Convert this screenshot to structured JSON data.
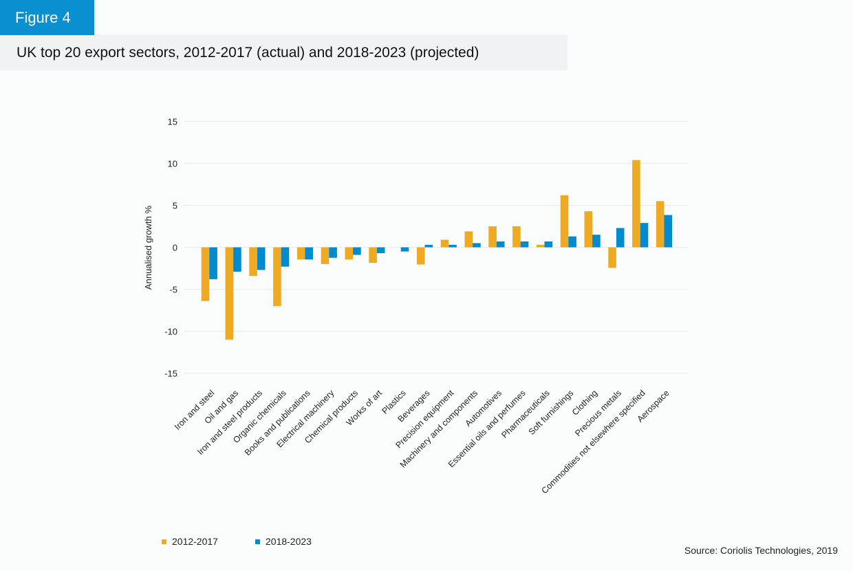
{
  "header": {
    "figure_label": "Figure 4",
    "title": "UK top 20 export sectors, 2012-2017 (actual) and 2018-2023 (projected)"
  },
  "colors": {
    "header_blue": "#0a8fd1",
    "series_2012_2017": "#eeaa22",
    "series_2018_2023": "#008bcf",
    "gridline": "#ebeced"
  },
  "source": "Source: Coriolis Technologies, 2019",
  "chart_data": {
    "type": "bar",
    "title": "UK top 20 export sectors, 2012-2017 (actual) and 2018-2023 (projected)",
    "xlabel": "",
    "ylabel": "Annualised growth %",
    "ylim": [
      -15,
      15
    ],
    "yticks": [
      15,
      10,
      5,
      0,
      -5,
      -10,
      -15
    ],
    "grid": true,
    "legend_position": "bottom-left",
    "categories": [
      "Iron and steel",
      "Oil and gas",
      "Iron and steel products",
      "Organic chemicals",
      "Books and publications",
      "Electrical machinery",
      "Chemical products",
      "Works of art",
      "Plastics",
      "Beverages",
      "Precision equipment",
      "Machinery and components",
      "Automotives",
      "Essential oils and perfumes",
      "Pharmaceuticals",
      "Soft furnishings",
      "Clothing",
      "Precious metals",
      "Commodities not elsewhere specified",
      "Aerospace"
    ],
    "series": [
      {
        "name": "2012-2017",
        "values": [
          -6.4,
          -11.0,
          -3.4,
          -7.0,
          -1.45,
          -2.0,
          -1.45,
          -1.85,
          0.0,
          -2.05,
          0.9,
          1.9,
          2.5,
          2.5,
          0.3,
          6.2,
          4.3,
          -2.45,
          10.4,
          5.5
        ]
      },
      {
        "name": "2018-2023",
        "values": [
          -3.8,
          -2.9,
          -2.7,
          -2.3,
          -1.45,
          -1.25,
          -0.9,
          -0.7,
          -0.5,
          0.3,
          0.3,
          0.5,
          0.7,
          0.7,
          0.7,
          1.3,
          1.5,
          2.3,
          2.9,
          3.85
        ]
      }
    ]
  }
}
